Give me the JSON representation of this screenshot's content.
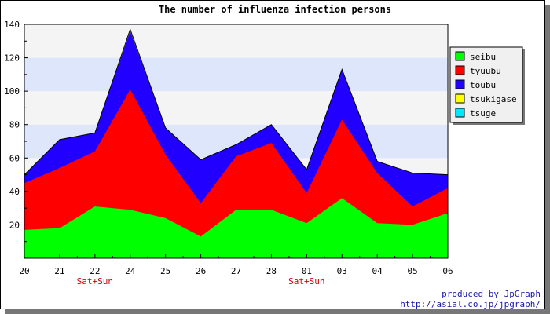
{
  "chart_data": {
    "type": "area",
    "stacked": true,
    "title": "The number of influenza infection persons",
    "categories": [
      "20",
      "21",
      "22",
      "24",
      "25",
      "26",
      "27",
      "28",
      "01",
      "03",
      "04",
      "05",
      "06"
    ],
    "category_notes": {
      "22": "Sat+Sun",
      "01": "Sat+Sun"
    },
    "ylim": [
      0,
      140
    ],
    "yticks": [
      20,
      40,
      60,
      80,
      100,
      120,
      140
    ],
    "series": [
      {
        "name": "seibu",
        "color": "#00ff00",
        "values": [
          17,
          18,
          31,
          29,
          24,
          13,
          29,
          29,
          21,
          36,
          21,
          20,
          27
        ]
      },
      {
        "name": "tyuubu",
        "color": "#ff0000",
        "values": [
          28,
          36,
          33,
          72,
          38,
          20,
          32,
          40,
          18,
          47,
          30,
          11,
          15
        ]
      },
      {
        "name": "toubu",
        "color": "#2200ff",
        "values": [
          5,
          17,
          11,
          35,
          16,
          26,
          7,
          11,
          14,
          30,
          7,
          20,
          8
        ]
      },
      {
        "name": "tsukigase",
        "color": "#ffff00",
        "values": [
          0,
          0,
          0,
          1,
          0,
          0,
          0,
          0,
          0,
          0,
          0,
          0,
          0
        ]
      },
      {
        "name": "tsuge",
        "color": "#00e8ff",
        "values": [
          0,
          0,
          0,
          0,
          0,
          0,
          0,
          0,
          0,
          0,
          0,
          0,
          0
        ]
      }
    ],
    "grid": true,
    "legend_position": "top-right"
  },
  "footer": {
    "line1": "produced by JpGraph",
    "line2": "http://asial.co.jp/jpgraph/"
  }
}
